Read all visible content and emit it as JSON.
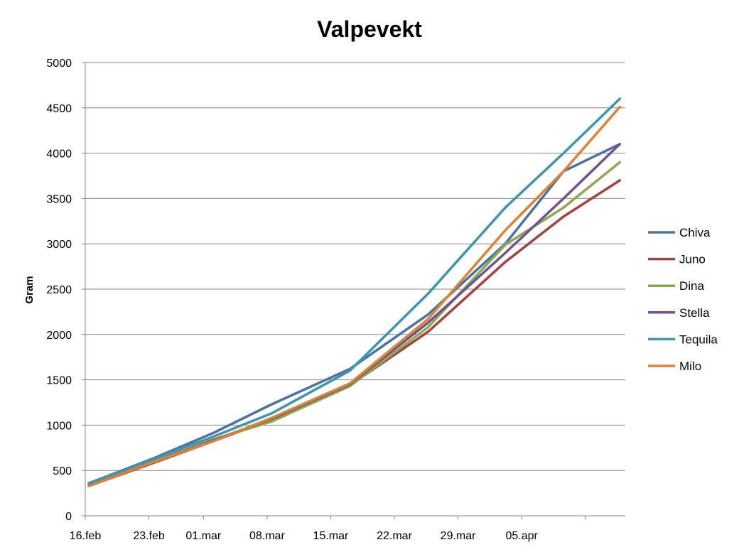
{
  "chart_data": {
    "type": "line",
    "title": "Valpevekt",
    "xlabel": "",
    "ylabel": "Gram",
    "ylim": [
      0,
      5000
    ],
    "yticks": [
      0,
      500,
      1000,
      1500,
      2000,
      2500,
      3000,
      3500,
      4000,
      4500,
      5000
    ],
    "xlim": [
      0,
      59.4
    ],
    "xticks": [
      {
        "day": 0,
        "label": "16.feb"
      },
      {
        "day": 7,
        "label": "23.feb"
      },
      {
        "day": 13,
        "label": "01.mar"
      },
      {
        "day": 20,
        "label": "08.mar"
      },
      {
        "day": 27,
        "label": "15.mar"
      },
      {
        "day": 34,
        "label": "22.mar"
      },
      {
        "day": 41,
        "label": "29.mar"
      },
      {
        "day": 48,
        "label": "05.apr"
      },
      {
        "day": 55,
        "label": ""
      }
    ],
    "x": [
      0.4,
      7.4,
      14,
      20.5,
      29.1,
      37.7,
      46.2,
      52.6,
      58.8
    ],
    "grid": true,
    "legend": "right",
    "series": [
      {
        "name": "Chiva",
        "color": "#4a72a8",
        "values": [
          360,
          630,
          910,
          1230,
          1620,
          2220,
          3000,
          3800,
          4100
        ]
      },
      {
        "name": "Juno",
        "color": "#a9403d",
        "values": [
          330,
          580,
          820,
          1060,
          1440,
          2030,
          2800,
          3300,
          3700
        ]
      },
      {
        "name": "Dina",
        "color": "#8aab4b",
        "values": [
          340,
          590,
          840,
          1040,
          1430,
          2080,
          2990,
          3400,
          3900
        ]
      },
      {
        "name": "Stella",
        "color": "#6e5294",
        "values": [
          340,
          590,
          830,
          1070,
          1450,
          2130,
          2900,
          3500,
          4100
        ]
      },
      {
        "name": "Tequila",
        "color": "#3a97ae",
        "values": [
          360,
          620,
          870,
          1130,
          1600,
          2450,
          3400,
          4000,
          4600
        ]
      },
      {
        "name": "Milo",
        "color": "#e0822f",
        "values": [
          330,
          590,
          820,
          1080,
          1460,
          2170,
          3150,
          3800,
          4510
        ]
      }
    ]
  }
}
